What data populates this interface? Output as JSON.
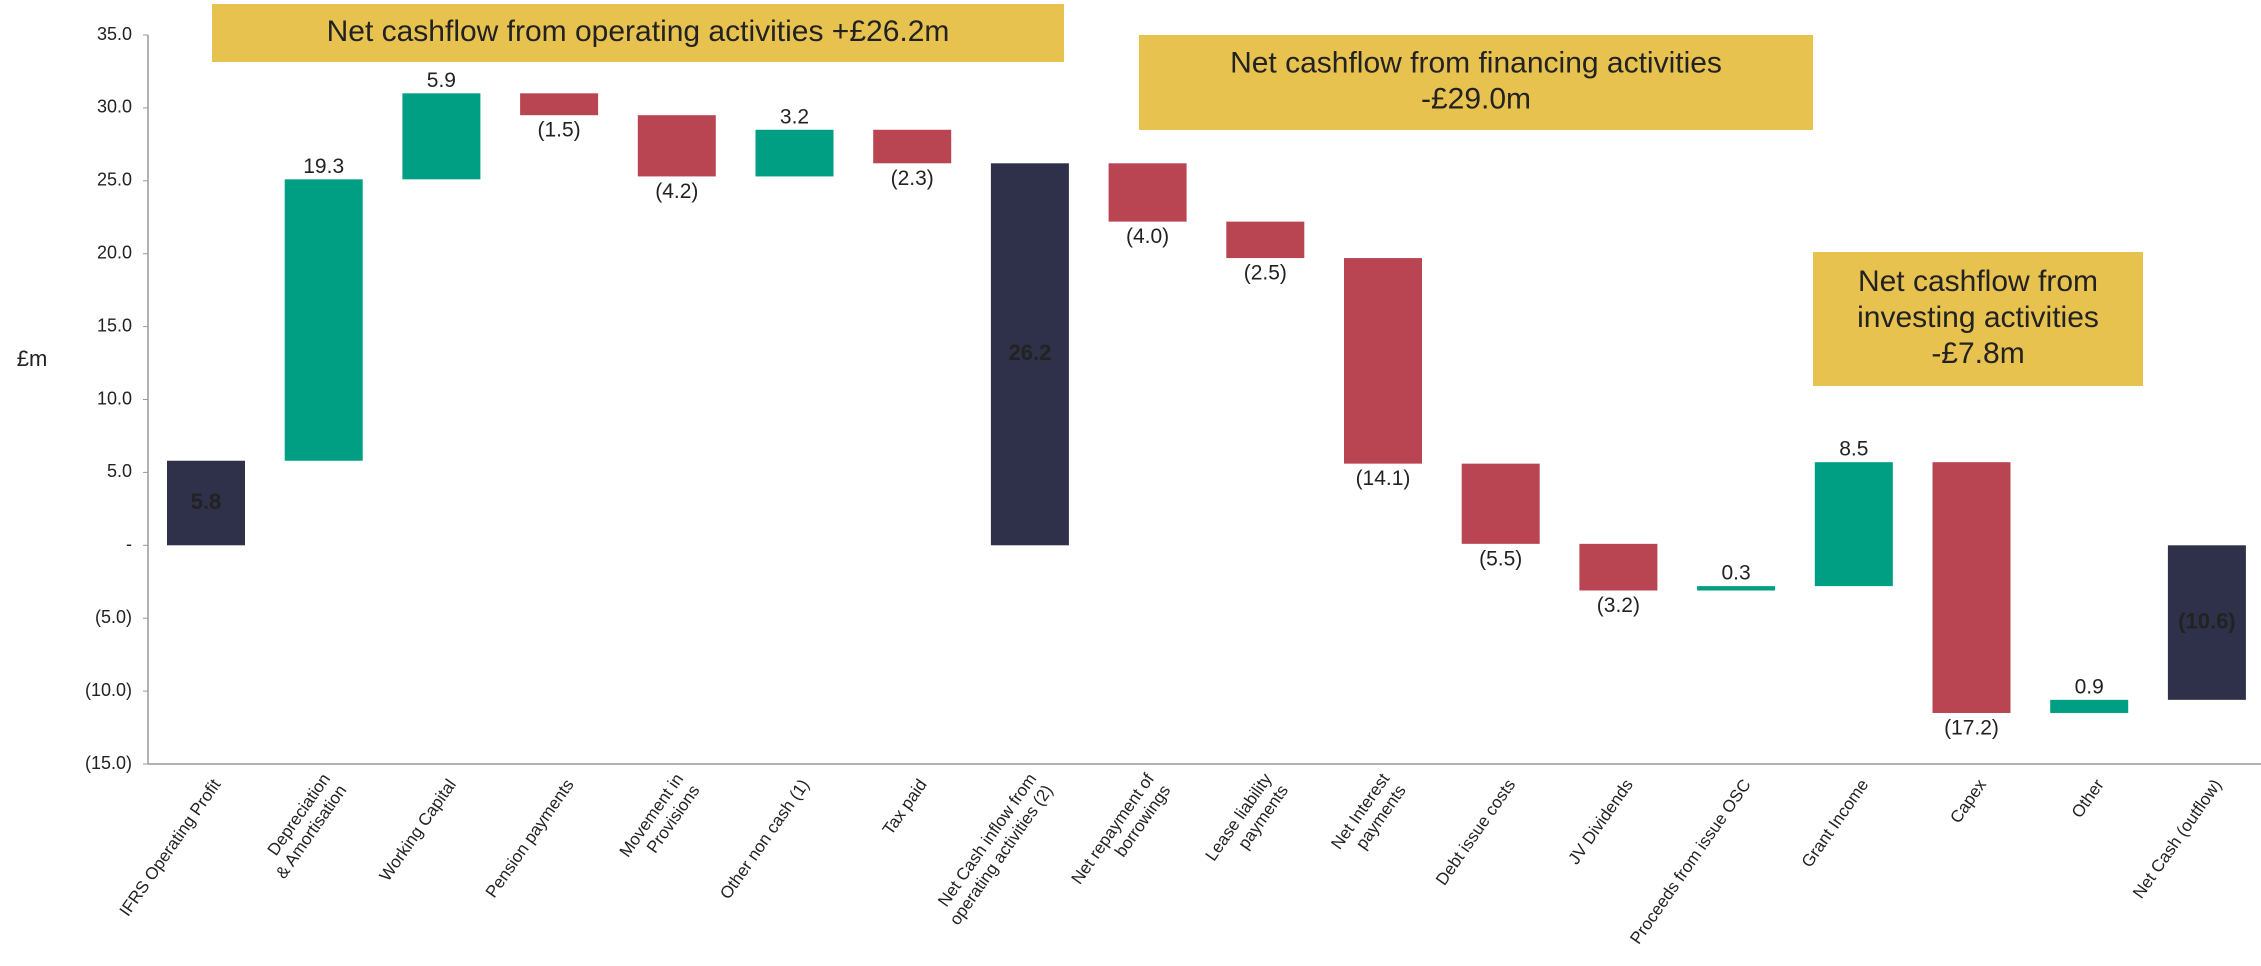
{
  "chart_data": {
    "type": "waterfall",
    "y_label": "£m",
    "categories": [
      "IFRS Operating Profit",
      "Depreciation\n& Amortisation",
      "Working Capital",
      "Pension payments",
      "Movement in\nProvisions",
      "Other non cash (1)",
      "Tax paid",
      "Net Cash inflow from\noperating activities (2)",
      "Net repayment of\nborrowings",
      "Lease liability\npayments",
      "Net Interest\npayments",
      "Debt issue costs",
      "JV Dividends",
      "Proceeds from issue OSC",
      "Grant Income",
      "Capex",
      "Other",
      "Net Cash (outflow)"
    ],
    "values": [
      5.8,
      19.3,
      5.9,
      -1.5,
      -4.2,
      3.2,
      -2.3,
      26.2,
      -4.0,
      -2.5,
      -14.1,
      -5.5,
      -3.2,
      0.3,
      8.5,
      -17.2,
      0.9,
      -10.6
    ],
    "value_labels": [
      "5.8",
      "19.3",
      "5.9",
      "(1.5)",
      "(4.2)",
      "3.2",
      "(2.3)",
      "26.2",
      "(4.0)",
      "(2.5)",
      "(14.1)",
      "(5.5)",
      "(3.2)",
      "0.3",
      "8.5",
      "(17.2)",
      "0.9",
      "(10.6)"
    ],
    "colors": [
      "#2e3149",
      "#009e82",
      "#009e82",
      "#b94553",
      "#b94553",
      "#009e82",
      "#b94553",
      "#2e3149",
      "#b94553",
      "#b94553",
      "#b94553",
      "#b94553",
      "#b94553",
      "#009e82",
      "#009e82",
      "#b94553",
      "#009e82",
      "#2e3149"
    ],
    "total_color": "#2e3149",
    "ylim": [
      -15,
      35
    ],
    "yticks": [
      {
        "value": 35,
        "label": "35.0"
      },
      {
        "value": 30,
        "label": "30.0"
      },
      {
        "value": 25,
        "label": "25.0"
      },
      {
        "value": 20,
        "label": "20.0"
      },
      {
        "value": 15,
        "label": "15.0"
      },
      {
        "value": 10,
        "label": "10.0"
      },
      {
        "value": 5,
        "label": "5.0"
      },
      {
        "value": 0,
        "label": "-"
      },
      {
        "value": -5,
        "label": "(5.0)"
      },
      {
        "value": -10,
        "label": "(10.0)"
      },
      {
        "value": -15,
        "label": "(15.0)"
      }
    ],
    "annotations": [
      {
        "lines": [
          "Net cashflow from operating activities +£26.2m"
        ]
      },
      {
        "lines": [
          "Net cashflow from financing  activities",
          "-£29.0m"
        ]
      },
      {
        "lines": [
          "Net cashflow from",
          "investing activities",
          "-£7.8m"
        ]
      }
    ],
    "annotation_color": "#e8c24f"
  }
}
